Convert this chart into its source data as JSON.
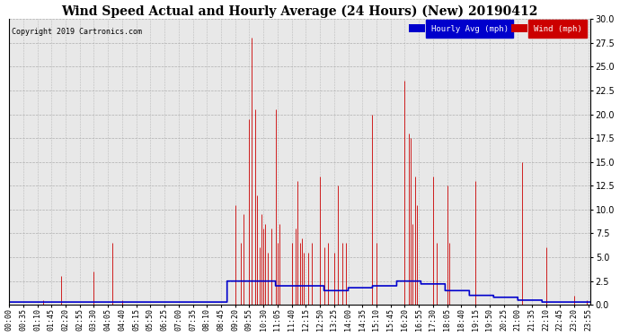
{
  "title": "Wind Speed Actual and Hourly Average (24 Hours) (New) 20190412",
  "copyright": "Copyright 2019 Cartronics.com",
  "ylim": [
    0,
    30.0
  ],
  "yticks": [
    0.0,
    2.5,
    5.0,
    7.5,
    10.0,
    12.5,
    15.0,
    17.5,
    20.0,
    22.5,
    25.0,
    27.5,
    30.0
  ],
  "legend_labels": [
    "Hourly Avg (mph)",
    "Wind (mph)"
  ],
  "legend_bg_colors": [
    "#0000cc",
    "#cc0000"
  ],
  "bg_color": "#ffffff",
  "plot_bg_color": "#e8e8e8",
  "grid_color": "#aaaaaa",
  "title_fontsize": 10,
  "tick_fontsize": 6,
  "time_labels": [
    "00:00",
    "00:35",
    "01:10",
    "01:45",
    "02:20",
    "02:55",
    "03:30",
    "04:05",
    "04:40",
    "05:15",
    "05:50",
    "06:25",
    "07:00",
    "07:35",
    "08:10",
    "08:45",
    "09:20",
    "09:55",
    "10:30",
    "11:05",
    "11:40",
    "12:15",
    "12:50",
    "13:25",
    "14:00",
    "14:35",
    "15:10",
    "15:45",
    "16:20",
    "16:55",
    "17:30",
    "18:05",
    "18:40",
    "19:15",
    "19:50",
    "20:25",
    "21:00",
    "21:35",
    "22:10",
    "22:45",
    "23:20",
    "23:55"
  ],
  "wind_color": "#cc0000",
  "hourly_color": "#0000cc",
  "hourly_avg_hours": [
    0,
    1,
    2,
    3,
    4,
    5,
    6,
    7,
    8,
    9,
    10,
    11,
    12,
    13,
    14,
    15,
    16,
    17,
    18,
    19,
    20,
    21,
    22,
    23
  ],
  "hourly_avg_values": [
    0.3,
    0.3,
    0.3,
    0.3,
    0.3,
    0.3,
    0.3,
    0.3,
    0.3,
    2.5,
    2.5,
    2.0,
    2.0,
    1.5,
    1.8,
    2.0,
    2.5,
    2.2,
    1.5,
    1.0,
    0.8,
    0.5,
    0.3,
    0.3
  ]
}
